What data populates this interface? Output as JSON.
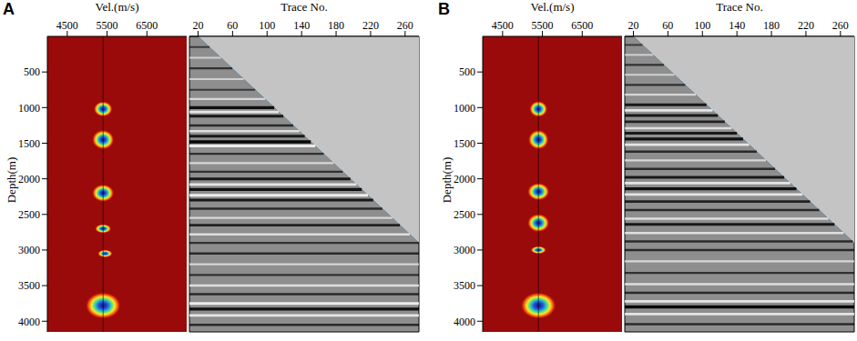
{
  "chart_data": [
    {
      "type": "heatmap",
      "panel": "A",
      "x_label": "Vel.(m/s)",
      "y_label": "Depth(m)",
      "xlim": [
        4000,
        7500
      ],
      "xticks": [
        4500,
        5500,
        6500
      ],
      "ylim": [
        0,
        4150
      ],
      "yticks": [
        500,
        1000,
        1500,
        2000,
        2500,
        3000,
        3500,
        4000
      ],
      "picked_velocity": 5400,
      "hotspots": [
        {
          "velocity": 5400,
          "depth": 1020,
          "velocity_width": 480,
          "depth_height": 220
        },
        {
          "velocity": 5400,
          "depth": 1450,
          "velocity_width": 560,
          "depth_height": 280
        },
        {
          "velocity": 5400,
          "depth": 2200,
          "velocity_width": 560,
          "depth_height": 250
        },
        {
          "velocity": 5400,
          "depth": 2700,
          "velocity_width": 420,
          "depth_height": 130
        },
        {
          "velocity": 5450,
          "depth": 3050,
          "velocity_width": 380,
          "depth_height": 110
        },
        {
          "velocity": 5400,
          "depth": 3780,
          "velocity_width": 900,
          "depth_height": 380
        }
      ]
    },
    {
      "type": "seismic",
      "x_label": "Trace No.",
      "xlim": [
        10,
        276
      ],
      "xticks": [
        20,
        60,
        100,
        140,
        180,
        220,
        260
      ],
      "ylim": [
        0,
        4150
      ],
      "tick_labels": "x",
      "data_boundary": [
        [
          20,
          0
        ],
        [
          276,
          2900
        ]
      ],
      "reflectors": [
        {
          "depth": 150,
          "amplitude": 0.4
        },
        {
          "depth": 300,
          "amplitude": -0.4
        },
        {
          "depth": 450,
          "amplitude": 0.5
        },
        {
          "depth": 600,
          "amplitude": -0.4
        },
        {
          "depth": 750,
          "amplitude": 0.4
        },
        {
          "depth": 880,
          "amplitude": -0.5
        },
        {
          "depth": 1000,
          "amplitude": 0.9
        },
        {
          "depth": 1060,
          "amplitude": -0.7
        },
        {
          "depth": 1120,
          "amplitude": 0.8
        },
        {
          "depth": 1250,
          "amplitude": 0.6
        },
        {
          "depth": 1330,
          "amplitude": -0.6
        },
        {
          "depth": 1400,
          "amplitude": 0.8
        },
        {
          "depth": 1480,
          "amplitude": 1.0
        },
        {
          "depth": 1540,
          "amplitude": -0.8
        },
        {
          "depth": 1650,
          "amplitude": 0.5
        },
        {
          "depth": 1780,
          "amplitude": -0.5
        },
        {
          "depth": 1900,
          "amplitude": 0.5
        },
        {
          "depth": 2000,
          "amplitude": 0.8
        },
        {
          "depth": 2080,
          "amplitude": -0.7
        },
        {
          "depth": 2150,
          "amplitude": 0.9
        },
        {
          "depth": 2230,
          "amplitude": -0.8
        },
        {
          "depth": 2300,
          "amplitude": 0.8
        },
        {
          "depth": 2420,
          "amplitude": 0.6
        },
        {
          "depth": 2550,
          "amplitude": -0.5
        },
        {
          "depth": 2650,
          "amplitude": 0.7
        },
        {
          "depth": 2780,
          "amplitude": -0.6
        },
        {
          "depth": 2900,
          "amplitude": 0.5
        },
        {
          "depth": 3050,
          "amplitude": 0.6
        },
        {
          "depth": 3200,
          "amplitude": -0.5
        },
        {
          "depth": 3350,
          "amplitude": 0.5
        },
        {
          "depth": 3500,
          "amplitude": -0.6
        },
        {
          "depth": 3620,
          "amplitude": 0.6
        },
        {
          "depth": 3750,
          "amplitude": -0.8
        },
        {
          "depth": 3830,
          "amplitude": 0.9
        },
        {
          "depth": 3920,
          "amplitude": -0.7
        },
        {
          "depth": 4050,
          "amplitude": 0.6
        }
      ]
    },
    {
      "type": "heatmap",
      "panel": "B",
      "x_label": "Vel.(m/s)",
      "y_label": "Depth(m)",
      "xlim": [
        4000,
        7500
      ],
      "xticks": [
        4500,
        5500,
        6500
      ],
      "ylim": [
        0,
        4150
      ],
      "yticks": [
        500,
        1000,
        1500,
        2000,
        2500,
        3000,
        3500,
        4000
      ],
      "picked_velocity": 5400,
      "hotspots": [
        {
          "velocity": 5400,
          "depth": 1020,
          "velocity_width": 460,
          "depth_height": 230
        },
        {
          "velocity": 5400,
          "depth": 1450,
          "velocity_width": 520,
          "depth_height": 280
        },
        {
          "velocity": 5400,
          "depth": 2180,
          "velocity_width": 560,
          "depth_height": 250
        },
        {
          "velocity": 5400,
          "depth": 2620,
          "velocity_width": 560,
          "depth_height": 260
        },
        {
          "velocity": 5400,
          "depth": 3000,
          "velocity_width": 400,
          "depth_height": 110
        },
        {
          "velocity": 5400,
          "depth": 3780,
          "velocity_width": 900,
          "depth_height": 380
        }
      ]
    },
    {
      "type": "seismic",
      "x_label": "Trace No.",
      "xlim": [
        10,
        276
      ],
      "xticks": [
        20,
        60,
        100,
        140,
        180,
        220,
        260
      ],
      "ylim": [
        0,
        4150
      ],
      "tick_labels": "x",
      "data_boundary": [
        [
          20,
          0
        ],
        [
          276,
          2900
        ]
      ],
      "reflectors": [
        {
          "depth": 120,
          "amplitude": 0.4
        },
        {
          "depth": 260,
          "amplitude": -0.4
        },
        {
          "depth": 400,
          "amplitude": 0.5
        },
        {
          "depth": 540,
          "amplitude": -0.4
        },
        {
          "depth": 680,
          "amplitude": 0.5
        },
        {
          "depth": 820,
          "amplitude": -0.5
        },
        {
          "depth": 960,
          "amplitude": 0.8
        },
        {
          "depth": 1040,
          "amplitude": -0.7
        },
        {
          "depth": 1110,
          "amplitude": 0.8
        },
        {
          "depth": 1200,
          "amplitude": 0.7
        },
        {
          "depth": 1290,
          "amplitude": -0.6
        },
        {
          "depth": 1360,
          "amplitude": 0.8
        },
        {
          "depth": 1440,
          "amplitude": 0.9
        },
        {
          "depth": 1520,
          "amplitude": -0.7
        },
        {
          "depth": 1620,
          "amplitude": 0.6
        },
        {
          "depth": 1740,
          "amplitude": -0.5
        },
        {
          "depth": 1860,
          "amplitude": 0.6
        },
        {
          "depth": 1980,
          "amplitude": 0.8
        },
        {
          "depth": 2060,
          "amplitude": -0.7
        },
        {
          "depth": 2140,
          "amplitude": 0.9
        },
        {
          "depth": 2220,
          "amplitude": -0.7
        },
        {
          "depth": 2320,
          "amplitude": 0.7
        },
        {
          "depth": 2440,
          "amplitude": 0.6
        },
        {
          "depth": 2560,
          "amplitude": -0.6
        },
        {
          "depth": 2640,
          "amplitude": 0.8
        },
        {
          "depth": 2760,
          "amplitude": -0.6
        },
        {
          "depth": 2880,
          "amplitude": 0.6
        },
        {
          "depth": 3000,
          "amplitude": 0.6
        },
        {
          "depth": 3160,
          "amplitude": -0.5
        },
        {
          "depth": 3320,
          "amplitude": 0.5
        },
        {
          "depth": 3480,
          "amplitude": -0.6
        },
        {
          "depth": 3600,
          "amplitude": 0.6
        },
        {
          "depth": 3720,
          "amplitude": -0.7
        },
        {
          "depth": 3800,
          "amplitude": 1.0
        },
        {
          "depth": 3900,
          "amplitude": -0.7
        },
        {
          "depth": 4040,
          "amplitude": 0.6
        }
      ]
    }
  ]
}
